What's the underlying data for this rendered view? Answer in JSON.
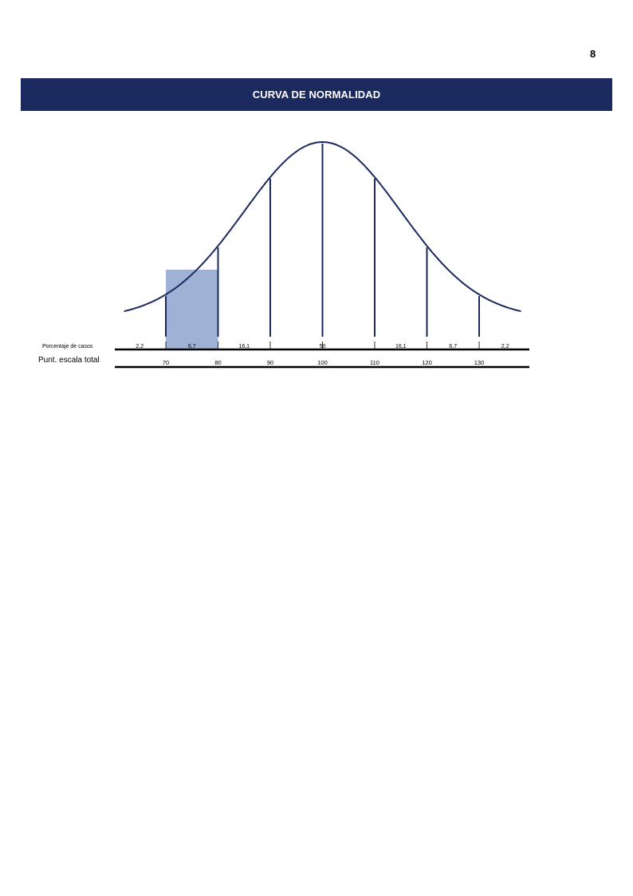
{
  "page": {
    "number": "8"
  },
  "header": {
    "title": "CURVA DE NORMALIDAD"
  },
  "chart_data": {
    "type": "normal-curve",
    "row_labels": {
      "percent": "Porcentaje de casos",
      "score": "Punt. escala total"
    },
    "score_ticks": [
      "70",
      "80",
      "90",
      "100",
      "110",
      "120",
      "130"
    ],
    "score_values": [
      70,
      80,
      90,
      100,
      110,
      120,
      130
    ],
    "intervals": [
      {
        "label": "2,2",
        "from": 60,
        "to": 70
      },
      {
        "label": "6,7",
        "from": 70,
        "to": 80
      },
      {
        "label": "16,1",
        "from": 80,
        "to": 90
      },
      {
        "label": "50",
        "from": 90,
        "to": 110
      },
      {
        "label": "16,1",
        "from": 110,
        "to": 120
      },
      {
        "label": "6,7",
        "from": 120,
        "to": 130
      },
      {
        "label": "2,2",
        "from": 130,
        "to": 140
      }
    ],
    "highlight": {
      "from": 70,
      "to": 80
    },
    "mean": 100,
    "sd": 15,
    "x_range": [
      62,
      138
    ],
    "colors": {
      "curve": "#1b2a5e",
      "highlight": "#9fb2d6",
      "axis": "#000000"
    }
  }
}
